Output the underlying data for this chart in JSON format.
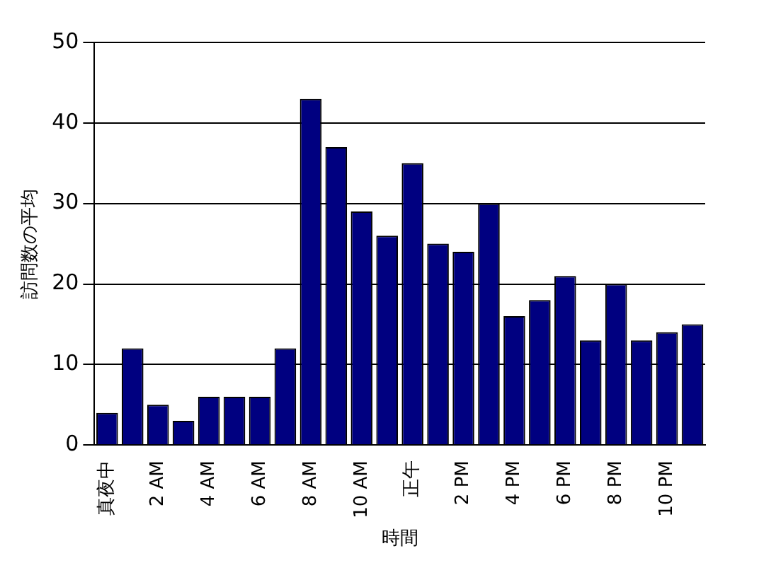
{
  "chart_data": {
    "type": "bar",
    "xlabel": "時間",
    "ylabel": "訪問数の平均",
    "categories": [
      "真夜中",
      null,
      "2 AM",
      null,
      "4 AM",
      null,
      "6 AM",
      null,
      "8 AM",
      null,
      "10 AM",
      null,
      "正午",
      null,
      "2 PM",
      null,
      "4 PM",
      null,
      "6 PM",
      null,
      "8 PM",
      null,
      "10 PM",
      null
    ],
    "values": [
      4,
      12,
      5,
      3,
      6,
      6,
      6,
      12,
      43,
      37,
      29,
      26,
      35,
      25,
      24,
      30,
      16,
      18,
      21,
      13,
      20,
      13,
      14,
      15
    ],
    "color": "#000080",
    "ylim": [
      0,
      50
    ],
    "yticks": [
      0,
      10,
      20,
      30,
      40,
      50
    ],
    "grid": "y"
  }
}
